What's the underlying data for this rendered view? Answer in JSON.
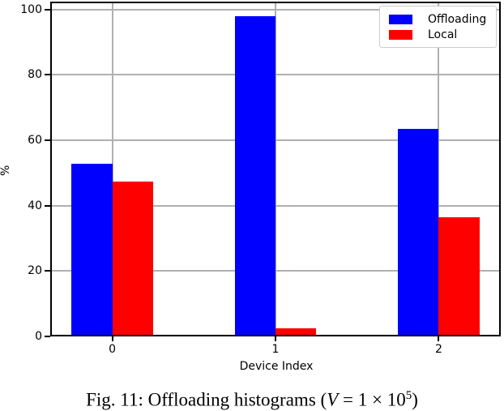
{
  "figure": {
    "caption": {
      "prefix": "Fig. 11: Offloading histograms (",
      "variable": "V",
      "equation": " = 1 × 10",
      "superscript": "5",
      "suffix": ")"
    }
  },
  "chart_data": {
    "type": "bar",
    "title": "",
    "xlabel": "Device Index",
    "ylabel": "%",
    "categories": [
      "0",
      "1",
      "2"
    ],
    "series": [
      {
        "name": "Offloading",
        "color": "#0000ff",
        "values": [
          52.7,
          97.9,
          63.5
        ]
      },
      {
        "name": "Local",
        "color": "#ff0000",
        "values": [
          47.3,
          2.5,
          36.4
        ]
      }
    ],
    "bar_width": 0.25,
    "yticks": [
      0,
      20,
      40,
      60,
      80,
      100
    ],
    "xlim": [
      -0.38,
      2.38
    ],
    "ylim": [
      0,
      102.4
    ],
    "grid": true,
    "grid_color": "#b0b0b0",
    "legend": {
      "position": "upper right",
      "entries": [
        "Offloading",
        "Local"
      ]
    }
  }
}
